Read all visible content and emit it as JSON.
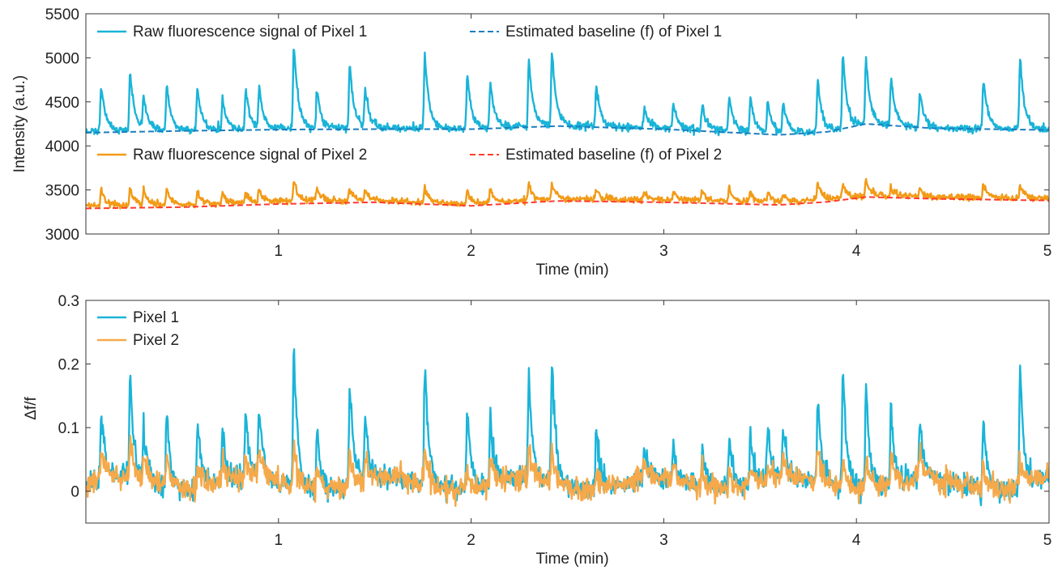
{
  "chart_data": [
    {
      "type": "line",
      "panel": "top",
      "xlabel": "Time (min)",
      "ylabel": "Intensity (a.u.)",
      "xlim": [
        0,
        5
      ],
      "ylim": [
        3000,
        5500
      ],
      "x_ticks": [
        1,
        2,
        3,
        4,
        5
      ],
      "x_tick_labels": [
        "1",
        "2",
        "3",
        "4",
        "5"
      ],
      "y_ticks": [
        3000,
        3500,
        4000,
        4500,
        5000,
        5500
      ],
      "y_tick_labels": [
        "3000",
        "3500",
        "4000",
        "4500",
        "5000",
        "5500"
      ],
      "grid": false,
      "legend": "top, two rows of two entries",
      "peak_times_min": [
        0.08,
        0.23,
        0.3,
        0.42,
        0.58,
        0.71,
        0.83,
        0.9,
        1.08,
        1.2,
        1.37,
        1.45,
        1.76,
        1.98,
        2.1,
        2.3,
        2.42,
        2.65,
        2.9,
        3.05,
        3.2,
        3.34,
        3.45,
        3.54,
        3.62,
        3.8,
        3.93,
        4.05,
        4.18,
        4.33,
        4.66,
        4.85
      ],
      "series": [
        {
          "name": "Raw fluorescence signal of Pixel 1",
          "color": "#1ab4d8",
          "dash": "solid",
          "baseline_points": [
            [
              0,
              4170
            ],
            [
              0.5,
              4180
            ],
            [
              1,
              4195
            ],
            [
              1.5,
              4200
            ],
            [
              2,
              4200
            ],
            [
              2.45,
              4230
            ],
            [
              3,
              4200
            ],
            [
              3.6,
              4140
            ],
            [
              3.85,
              4170
            ],
            [
              4.05,
              4250
            ],
            [
              4.4,
              4200
            ],
            [
              5,
              4190
            ]
          ],
          "peak_heights": [
            4690,
            4860,
            4560,
            4690,
            4660,
            4540,
            4650,
            4660,
            5170,
            4630,
            4930,
            4640,
            5060,
            4800,
            4720,
            4990,
            5080,
            4690,
            4430,
            4480,
            4470,
            4580,
            4540,
            4520,
            4490,
            4760,
            5030,
            4990,
            4780,
            4620,
            4760,
            5000
          ]
        },
        {
          "name": "Estimated baseline (f) of Pixel 1",
          "color": "#1a7ec0",
          "dash": "dashed",
          "points": [
            [
              0,
              4150
            ],
            [
              0.5,
              4170
            ],
            [
              1,
              4185
            ],
            [
              1.5,
              4190
            ],
            [
              2,
              4190
            ],
            [
              2.45,
              4225
            ],
            [
              3,
              4190
            ],
            [
              3.6,
              4125
            ],
            [
              3.85,
              4160
            ],
            [
              4.05,
              4250
            ],
            [
              4.4,
              4200
            ],
            [
              5,
              4180
            ]
          ]
        },
        {
          "name": "Raw fluorescence signal of Pixel 2",
          "color": "#f29b17",
          "dash": "solid",
          "baseline_points": [
            [
              0,
              3320
            ],
            [
              0.5,
              3330
            ],
            [
              1,
              3370
            ],
            [
              1.5,
              3380
            ],
            [
              2,
              3340
            ],
            [
              2.45,
              3400
            ],
            [
              3,
              3390
            ],
            [
              3.6,
              3360
            ],
            [
              3.85,
              3390
            ],
            [
              4.05,
              3440
            ],
            [
              4.4,
              3420
            ],
            [
              5,
              3400
            ]
          ],
          "peak_heights": [
            3500,
            3520,
            3490,
            3520,
            3480,
            3470,
            3470,
            3510,
            3600,
            3530,
            3530,
            3500,
            3530,
            3480,
            3520,
            3570,
            3560,
            3490,
            3470,
            3470,
            3490,
            3510,
            3470,
            3460,
            3470,
            3580,
            3560,
            3610,
            3530,
            3500,
            3560,
            3560
          ]
        },
        {
          "name": "Estimated baseline (f) of Pixel 2",
          "color": "#ff3b2f",
          "dash": "dashed",
          "points": [
            [
              0,
              3290
            ],
            [
              0.5,
              3305
            ],
            [
              1,
              3340
            ],
            [
              1.5,
              3360
            ],
            [
              2,
              3320
            ],
            [
              2.45,
              3375
            ],
            [
              3,
              3360
            ],
            [
              3.6,
              3330
            ],
            [
              3.85,
              3365
            ],
            [
              4.05,
              3420
            ],
            [
              4.4,
              3400
            ],
            [
              5,
              3380
            ]
          ]
        }
      ]
    },
    {
      "type": "line",
      "panel": "bottom",
      "xlabel": "Time (min)",
      "ylabel": "Δf/f",
      "xlim": [
        0,
        5
      ],
      "ylim": [
        -0.05,
        0.3
      ],
      "x_ticks": [
        1,
        2,
        3,
        4,
        5
      ],
      "x_tick_labels": [
        "1",
        "2",
        "3",
        "4",
        "5"
      ],
      "y_ticks": [
        0,
        0.1,
        0.2,
        0.3
      ],
      "y_tick_labels": [
        "0",
        "0.1",
        "0.2",
        "0.3"
      ],
      "grid": false,
      "legend": "top-left",
      "peak_times_min": [
        0.08,
        0.23,
        0.3,
        0.42,
        0.58,
        0.71,
        0.83,
        0.9,
        1.08,
        1.2,
        1.37,
        1.45,
        1.76,
        1.98,
        2.1,
        2.3,
        2.42,
        2.65,
        2.9,
        3.05,
        3.2,
        3.34,
        3.45,
        3.54,
        3.62,
        3.8,
        3.93,
        4.05,
        4.18,
        4.33,
        4.66,
        4.85
      ],
      "series": [
        {
          "name": "Pixel 1",
          "color": "#1ab4d8",
          "peak_values": [
            0.125,
            0.17,
            0.095,
            0.13,
            0.125,
            0.09,
            0.115,
            0.115,
            0.23,
            0.1,
            0.175,
            0.11,
            0.21,
            0.135,
            0.125,
            0.18,
            0.21,
            0.11,
            0.055,
            0.065,
            0.07,
            0.1,
            0.095,
            0.09,
            0.085,
            0.145,
            0.195,
            0.175,
            0.135,
            0.1,
            0.125,
            0.19
          ]
        },
        {
          "name": "Pixel 2",
          "color": "#f5a94a",
          "peak_values": [
            0.065,
            0.075,
            0.055,
            0.06,
            0.05,
            0.045,
            0.045,
            0.06,
            0.085,
            0.055,
            0.055,
            0.05,
            0.065,
            0.045,
            0.055,
            0.06,
            0.065,
            0.04,
            0.035,
            0.035,
            0.04,
            0.045,
            0.04,
            0.035,
            0.04,
            0.07,
            0.06,
            0.065,
            0.05,
            0.045,
            0.05,
            0.06
          ]
        }
      ]
    }
  ]
}
